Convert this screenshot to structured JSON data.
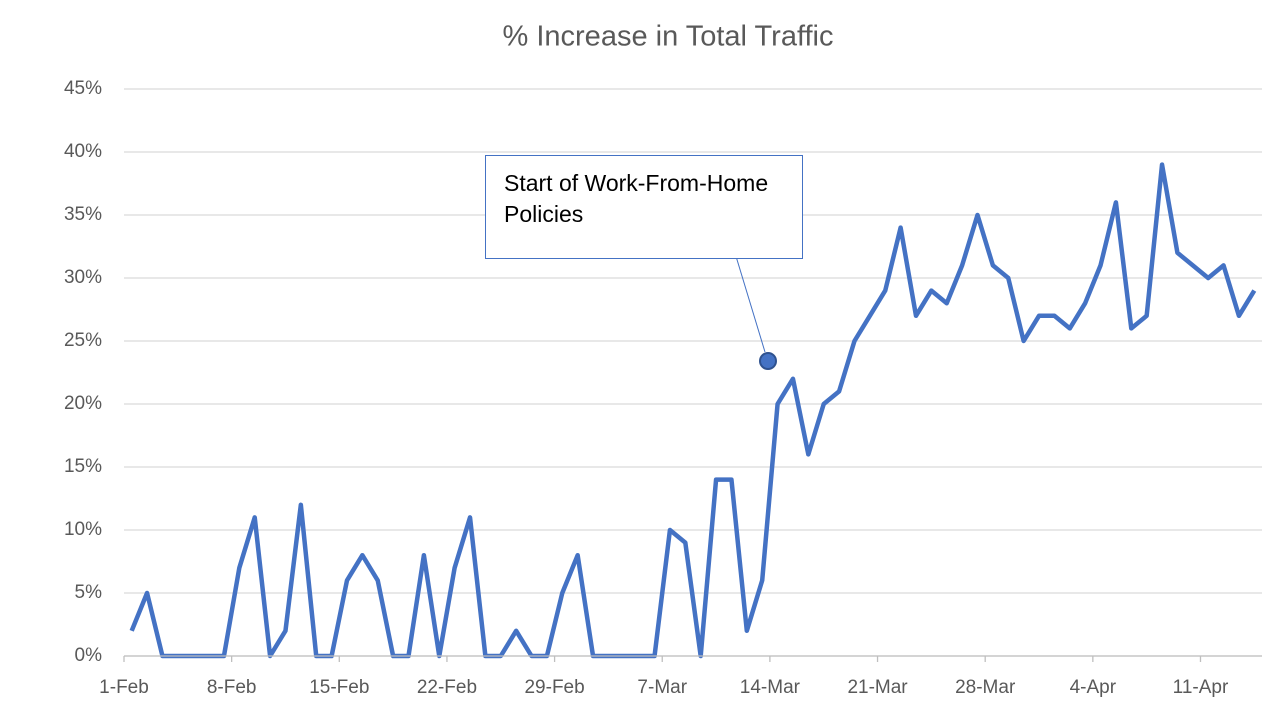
{
  "chart_data": {
    "type": "line",
    "title": "% Increase in Total Traffic",
    "categories": [
      "1-Feb",
      null,
      null,
      null,
      null,
      null,
      null,
      "8-Feb",
      null,
      null,
      null,
      null,
      null,
      null,
      "15-Feb",
      null,
      null,
      null,
      null,
      null,
      null,
      "22-Feb",
      null,
      null,
      null,
      null,
      null,
      null,
      "29-Feb",
      null,
      null,
      null,
      null,
      null,
      null,
      "7-Mar",
      null,
      null,
      null,
      null,
      null,
      null,
      "14-Mar",
      null,
      null,
      null,
      null,
      null,
      null,
      "21-Mar",
      null,
      null,
      null,
      null,
      null,
      null,
      "28-Mar",
      null,
      null,
      null,
      null,
      null,
      null,
      "4-Apr",
      null,
      null,
      null,
      null,
      null,
      null,
      "11-Apr",
      null,
      null,
      null
    ],
    "series": [
      {
        "name": "% Increase in Total Traffic",
        "color": "#4472c4",
        "values": [
          2,
          5,
          0,
          0,
          0,
          0,
          0,
          7,
          11,
          0,
          2,
          12,
          0,
          0,
          6,
          8,
          6,
          0,
          0,
          8,
          0,
          7,
          11,
          0,
          0,
          2,
          0,
          0,
          5,
          8,
          0,
          0,
          0,
          0,
          0,
          10,
          9,
          0,
          14,
          14,
          2,
          6,
          20,
          22,
          16,
          20,
          21,
          25,
          27,
          29,
          34,
          27,
          29,
          28,
          31,
          35,
          31,
          30,
          25,
          27,
          27,
          26,
          28,
          31,
          36,
          26,
          27,
          39,
          32,
          31,
          30,
          31,
          27,
          29
        ]
      }
    ],
    "ylim": [
      0,
      45
    ],
    "yticks": [
      {
        "value": 0,
        "label": "0%"
      },
      {
        "value": 5,
        "label": "5%"
      },
      {
        "value": 10,
        "label": "10%"
      },
      {
        "value": 15,
        "label": "15%"
      },
      {
        "value": 20,
        "label": "20%"
      },
      {
        "value": 25,
        "label": "25%"
      },
      {
        "value": 30,
        "label": "30%"
      },
      {
        "value": 35,
        "label": "35%"
      },
      {
        "value": 40,
        "label": "40%"
      },
      {
        "value": 45,
        "label": "45%"
      }
    ],
    "grid": true,
    "annotation": "Start of Work-From-Home Policies"
  }
}
